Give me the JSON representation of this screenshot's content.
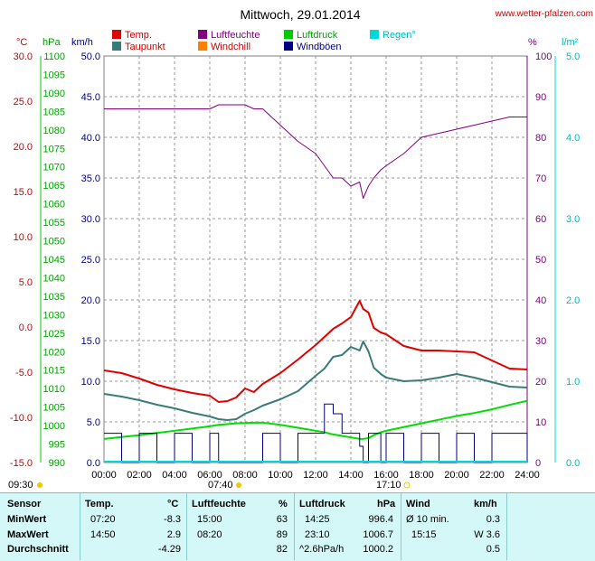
{
  "page": {
    "title": "Mittwoch, 29.01.2014",
    "site": "www.wetter-pfalzen.com"
  },
  "legend": [
    {
      "label": "Temp.",
      "color": "#e00000"
    },
    {
      "label": "Luftfeuchte",
      "color": "#800080"
    },
    {
      "label": "Luftdruck",
      "color": "#00cc00"
    },
    {
      "label": "Regen°",
      "color": "#00d8d8"
    },
    {
      "label": "Taupunkt",
      "color": "#3a7a78"
    },
    {
      "label": "Windchill",
      "color": "#ff8000"
    },
    {
      "label": "Windböen",
      "color": "#000080"
    }
  ],
  "axes": {
    "temp_unit": "°C",
    "hpa_unit": "hPa",
    "wind_unit": "km/h",
    "hum_unit": "%",
    "rain_unit": "l/m²",
    "temp_ticks": [
      "30.0",
      "25.0",
      "20.0",
      "15.0",
      "10.0",
      "5.0",
      "0.0",
      "-5.0",
      "-10.0",
      "-15.0"
    ],
    "hpa_ticks": [
      "1100",
      "1095",
      "1090",
      "1085",
      "1080",
      "1075",
      "1070",
      "1065",
      "1060",
      "1055",
      "1050",
      "1045",
      "1040",
      "1035",
      "1030",
      "1025",
      "1020",
      "1015",
      "1010",
      "1005",
      "1000",
      "995",
      "990"
    ],
    "wind_ticks": [
      "50.0",
      "45.0",
      "40.0",
      "35.0",
      "30.0",
      "25.0",
      "20.0",
      "15.0",
      "10.0",
      "5.0",
      "0.0"
    ],
    "hum_ticks": [
      "100",
      "90",
      "80",
      "70",
      "60",
      "50",
      "40",
      "30",
      "20",
      "10",
      "0"
    ],
    "rain_ticks": [
      "5.0",
      "4.0",
      "3.0",
      "2.0",
      "1.0",
      "0.0"
    ],
    "time_ticks": [
      "00:00",
      "02:00",
      "04:00",
      "06:00",
      "08:00",
      "10:00",
      "12:00",
      "14:00",
      "16:00",
      "18:00",
      "20:00",
      "22:00",
      "24:00"
    ],
    "sunrise": "07:40",
    "sunset": "17:10",
    "moon": "09:30"
  },
  "chart_data": {
    "type": "line",
    "x": [
      0,
      1,
      2,
      3,
      4,
      5,
      6,
      6.5,
      7,
      7.5,
      8,
      8.5,
      9,
      10,
      11,
      12,
      12.5,
      13,
      13.5,
      14,
      14.5,
      14.7,
      15,
      15.3,
      15.7,
      16,
      17,
      18,
      19,
      20,
      21,
      22,
      23,
      24
    ],
    "series": [
      {
        "name": "Temp.",
        "axis": "temp",
        "values": [
          -4.8,
          -5.1,
          -5.7,
          -6.4,
          -6.9,
          -7.3,
          -7.6,
          -8.3,
          -8.2,
          -7.8,
          -6.8,
          -7.2,
          -6.3,
          -5.1,
          -3.6,
          -2.0,
          -1.1,
          -0.2,
          0.4,
          1.1,
          2.9,
          2.0,
          1.6,
          -0.1,
          -0.6,
          -0.8,
          -2.1,
          -2.6,
          -2.6,
          -2.7,
          -2.8,
          -3.7,
          -4.6,
          -4.7
        ]
      },
      {
        "name": "Taupunkt",
        "axis": "temp",
        "values": [
          -7.4,
          -7.7,
          -8.1,
          -8.6,
          -9.0,
          -9.5,
          -9.9,
          -10.2,
          -10.3,
          -10.2,
          -9.6,
          -9.2,
          -8.7,
          -8.0,
          -7.1,
          -5.4,
          -4.6,
          -3.3,
          -3.1,
          -2.2,
          -2.6,
          -1.6,
          -2.7,
          -4.5,
          -5.2,
          -5.6,
          -6.0,
          -5.9,
          -5.6,
          -5.2,
          -5.6,
          -6.1,
          -6.6,
          -6.7
        ]
      },
      {
        "name": "Luftfeuchte",
        "axis": "hum",
        "values": [
          87,
          87,
          87,
          87,
          87,
          87,
          87,
          88,
          88,
          88,
          88,
          87,
          87,
          83,
          79,
          76,
          73,
          70,
          70,
          68,
          69,
          65,
          68,
          70,
          72,
          73,
          76,
          80,
          81,
          82,
          83,
          84,
          85,
          85
        ]
      },
      {
        "name": "Luftdruck",
        "axis": "hpa",
        "values": [
          996.4,
          996.9,
          997.4,
          998.0,
          998.6,
          999.2,
          999.8,
          1000.2,
          1000.4,
          1000.6,
          1000.7,
          1000.8,
          1000.8,
          1000.2,
          999.4,
          998.6,
          998.2,
          997.6,
          997.2,
          996.8,
          996.4,
          996.4,
          996.6,
          997.4,
          998.2,
          998.6,
          999.6,
          1000.6,
          1001.6,
          1002.6,
          1003.4,
          1004.4,
          1005.6,
          1006.7
        ]
      },
      {
        "name": "Windböen",
        "axis": "wind",
        "values": [
          3.6,
          0,
          3.6,
          0,
          3.6,
          0,
          3.6,
          0,
          0,
          0,
          0,
          0,
          3.6,
          0,
          3.6,
          3.6,
          7.2,
          6.0,
          3.6,
          3.6,
          2.0,
          0,
          3.6,
          3.6,
          0,
          3.6,
          0,
          3.6,
          0,
          3.6,
          0,
          3.6,
          3.6,
          0
        ]
      }
    ],
    "ylim_temp": [
      -15,
      30
    ],
    "ylim_hpa": [
      990,
      1100
    ],
    "ylim_wind": [
      0,
      50
    ],
    "ylim_hum": [
      0,
      100
    ],
    "ylim_rain": [
      0,
      5
    ],
    "xlim": [
      0,
      24
    ],
    "grid": true
  },
  "table": {
    "headers": [
      "Sensor",
      "Temp.",
      "°C",
      "Luftfeuchte",
      "%",
      "Luftdruck",
      "hPa",
      "Wind",
      "km/h"
    ],
    "rows": [
      {
        "label": "MinWert",
        "c1": "07:20",
        "c2": "-8.3",
        "c3": "15:00",
        "c4": "63",
        "c5": "14:25",
        "c6": "996.4",
        "c7": "Ø 10 min.",
        "c8": "0.3"
      },
      {
        "label": "MaxWert",
        "c1": "14:50",
        "c2": "2.9",
        "c3": "08:20",
        "c4": "89",
        "c5": "23:10",
        "c6": "1006.7",
        "c7": "15:15",
        "c8": "W 3.6"
      },
      {
        "label": "Durchschnitt",
        "c1": "",
        "c2": "-4.29",
        "c3": "",
        "c4": "82",
        "c5": "^2.6hPa/h",
        "c6": "1000.2",
        "c7": "",
        "c8": "0.5"
      }
    ]
  }
}
